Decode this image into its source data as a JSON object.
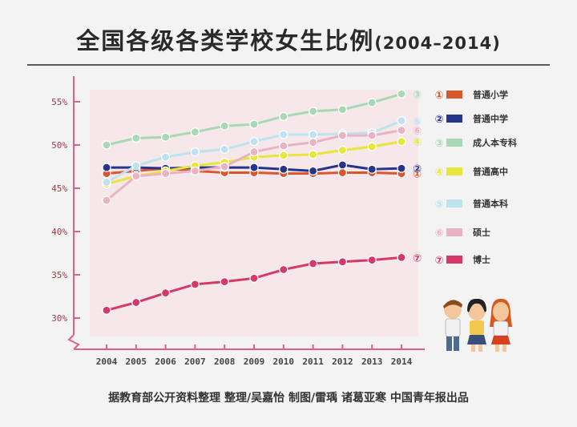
{
  "title": "全国各级各类学校女生比例",
  "title_years": "(2004–2014)",
  "footer": "据教育部公开资料整理 整理/吴嘉怡 制图/雷瑀 诸葛亚寒 中国青年报出品",
  "chart_data": {
    "type": "line",
    "title": "全国各级各类学校女生比例",
    "x": [
      "2004",
      "2005",
      "2006",
      "2007",
      "2008",
      "2009",
      "2010",
      "2011",
      "2012",
      "2013",
      "2014"
    ],
    "y_ticks": [
      "55%",
      "50%",
      "45%",
      "40%",
      "35%",
      "30%"
    ],
    "y_tick_values": [
      55,
      50,
      45,
      40,
      35,
      30
    ],
    "ylim": [
      28,
      57
    ],
    "grid": false,
    "legend_position": "right",
    "series": [
      {
        "marker": "①",
        "name": "普通小学",
        "color": "#d9572c",
        "values": [
          46.7,
          47.0,
          47.3,
          47.0,
          46.8,
          46.8,
          46.7,
          46.7,
          46.8,
          46.8,
          46.7
        ]
      },
      {
        "marker": "②",
        "name": "普通中学",
        "color": "#27348b",
        "values": [
          47.4,
          47.4,
          47.3,
          47.4,
          47.4,
          47.4,
          47.2,
          47.0,
          47.7,
          47.2,
          47.3
        ]
      },
      {
        "marker": "③",
        "name": "成人本专科",
        "color": "#a8d9b4",
        "values": [
          50.0,
          50.8,
          50.9,
          51.5,
          52.2,
          52.4,
          53.3,
          53.9,
          54.1,
          54.9,
          55.9
        ]
      },
      {
        "marker": "④",
        "name": "普通高中",
        "color": "#e8e63a",
        "values": [
          45.5,
          46.4,
          47.0,
          47.6,
          48.0,
          48.6,
          48.8,
          48.9,
          49.4,
          49.8,
          50.4
        ]
      },
      {
        "marker": "⑤",
        "name": "普通本科",
        "color": "#bde3ef",
        "values": [
          45.7,
          47.6,
          48.6,
          49.2,
          49.5,
          50.4,
          51.2,
          51.2,
          51.3,
          51.4,
          52.8
        ]
      },
      {
        "marker": "⑥",
        "name": "硕士",
        "color": "#eab3c3",
        "values": [
          43.6,
          46.4,
          46.7,
          47.0,
          47.5,
          49.2,
          49.9,
          50.3,
          51.1,
          51.1,
          51.7
        ]
      },
      {
        "marker": "⑦",
        "name": "博士",
        "color": "#d63868",
        "values": [
          30.9,
          31.8,
          32.9,
          33.9,
          34.2,
          34.6,
          35.6,
          36.3,
          36.5,
          36.7,
          37.0
        ]
      }
    ]
  }
}
